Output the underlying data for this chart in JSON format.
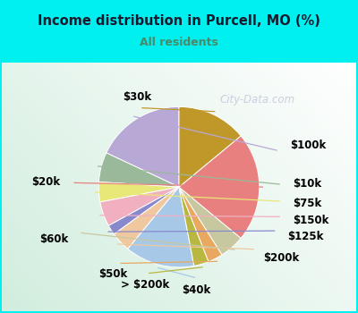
{
  "title": "Income distribution in Purcell, MO (%)",
  "subtitle": "All residents",
  "title_color": "#1a1a2e",
  "subtitle_color": "#4a8a6a",
  "cyan_bg": "#00efef",
  "chart_bg_colors": [
    "#e8f5ee",
    "#f5fbf7",
    "#ddeee8"
  ],
  "watermark": "City-Data.com",
  "labels": [
    "$100k",
    "$10k",
    "$75k",
    "$150k",
    "$125k",
    "$200k",
    "$40k",
    "> $200k",
    "$50k",
    "$60k",
    "$20k",
    "$30k"
  ],
  "values": [
    18,
    6,
    4,
    5,
    2,
    4,
    14,
    3,
    3,
    5,
    22,
    14
  ],
  "colors": [
    "#b8a8d5",
    "#9ab89a",
    "#e8e878",
    "#f0b0c0",
    "#8888cc",
    "#f0c8a0",
    "#a8c8e8",
    "#b8b840",
    "#e8a860",
    "#c8c8a0",
    "#e88080",
    "#c0982a"
  ],
  "label_positions": {
    "$100k": [
      1.38,
      0.52,
      "left"
    ],
    "$10k": [
      1.42,
      0.04,
      "left"
    ],
    "$75k": [
      1.42,
      -0.2,
      "left"
    ],
    "$150k": [
      1.42,
      -0.42,
      "left"
    ],
    "$125k": [
      1.35,
      -0.62,
      "left"
    ],
    "$200k": [
      1.05,
      -0.88,
      "left"
    ],
    "$40k": [
      0.22,
      -1.28,
      "center"
    ],
    "> $200k": [
      -0.42,
      -1.22,
      "center"
    ],
    "$50k": [
      -0.82,
      -1.08,
      "center"
    ],
    "$60k": [
      -1.38,
      -0.65,
      "right"
    ],
    "$20k": [
      -1.48,
      0.06,
      "right"
    ],
    "$30k": [
      -0.52,
      1.12,
      "center"
    ]
  },
  "label_fontsize": 8.5,
  "startangle": 90
}
